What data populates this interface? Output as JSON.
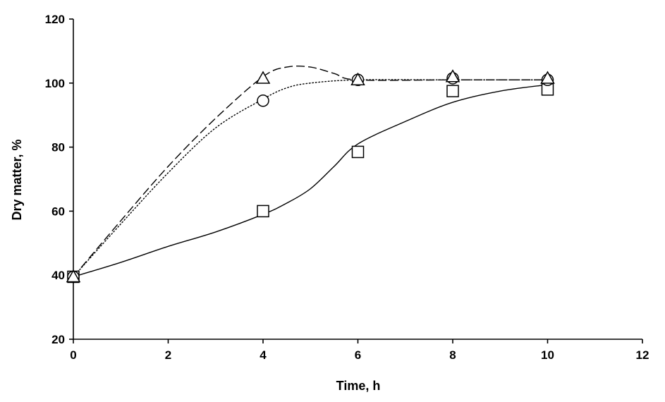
{
  "chart_data": {
    "type": "scatter",
    "title": "",
    "xlabel": "Time, h",
    "ylabel": "Dry matter, %",
    "xlim": [
      0,
      12
    ],
    "ylim": [
      20,
      120
    ],
    "xticks": [
      0,
      2,
      4,
      6,
      8,
      10,
      12
    ],
    "yticks": [
      20,
      40,
      60,
      80,
      100,
      120
    ],
    "grid": false,
    "legend": "none",
    "series": [
      {
        "marker": "square",
        "line_style": "solid",
        "x": [
          0,
          4,
          6,
          8,
          10
        ],
        "y": [
          39.5,
          60,
          78.5,
          97.5,
          98
        ],
        "curve_x": [
          0,
          1,
          2,
          3,
          4,
          4.5,
          5,
          5.5,
          6,
          7,
          8,
          9,
          10
        ],
        "curve_y": [
          39.5,
          44,
          49,
          53.5,
          59,
          62.5,
          67,
          74,
          81,
          88,
          94,
          97.5,
          99.5
        ]
      },
      {
        "marker": "circle",
        "line_style": "dotted",
        "x": [
          0,
          4,
          6,
          8,
          10
        ],
        "y": [
          39.5,
          94.5,
          101,
          101.5,
          101
        ],
        "curve_x": [
          0,
          1,
          2,
          3,
          4,
          4.5,
          5,
          6,
          8,
          10
        ],
        "curve_y": [
          39.5,
          56,
          72,
          86,
          95,
          98.5,
          100,
          101,
          101,
          101
        ]
      },
      {
        "marker": "triangle",
        "line_style": "dashed",
        "x": [
          0,
          4,
          6,
          8,
          10
        ],
        "y": [
          39.5,
          101.5,
          101,
          102,
          101.5
        ],
        "curve_x": [
          0,
          1,
          2,
          3,
          4,
          4.5,
          5,
          5.5,
          6,
          8,
          10
        ],
        "curve_y": [
          39.5,
          57,
          74,
          89,
          102,
          105,
          105,
          103,
          101,
          101,
          101
        ]
      }
    ]
  }
}
